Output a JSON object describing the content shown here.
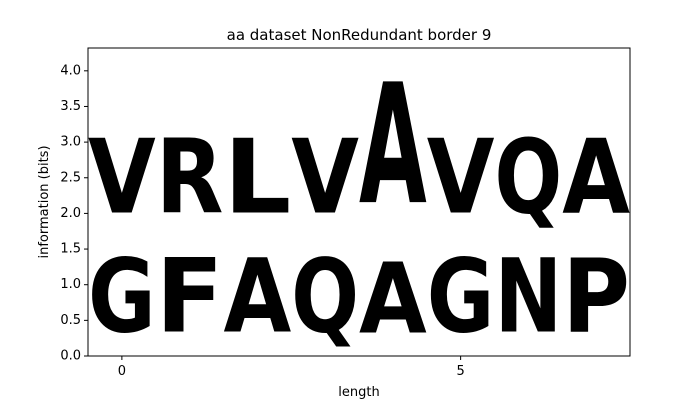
{
  "chart_data": {
    "type": "sequence-logo",
    "title": "aa dataset NonRedundant border 9",
    "xlabel": "length",
    "ylabel": "information (bits)",
    "xlim": [
      -0.5,
      7.5
    ],
    "ylim": [
      0,
      4.32
    ],
    "xticks": [
      0,
      5
    ],
    "xtick_labels": [
      "0",
      "5"
    ],
    "yticks": [
      0.0,
      0.5,
      1.0,
      1.5,
      2.0,
      2.5,
      3.0,
      3.5,
      4.0
    ],
    "ytick_labels": [
      "0.0",
      "0.5",
      "1.0",
      "1.5",
      "2.0",
      "2.5",
      "3.0",
      "3.5",
      "4.0"
    ],
    "colors": {
      "green": "#22dd2b",
      "blue": "#0a1ec8",
      "magenta": "#d71ec8",
      "black": "#000000"
    },
    "positions": [
      {
        "x": 0,
        "letters": [
          {
            "char": "G",
            "bottom": 0.0,
            "top": 1.67,
            "color": "green"
          },
          {
            "char": "V",
            "bottom": 1.67,
            "top": 3.35,
            "color": "black"
          }
        ]
      },
      {
        "x": 1,
        "letters": [
          {
            "char": "F",
            "bottom": 0.0,
            "top": 1.67,
            "color": "black"
          },
          {
            "char": "R",
            "bottom": 1.67,
            "top": 3.35,
            "color": "blue"
          }
        ]
      },
      {
        "x": 2,
        "letters": [
          {
            "char": "A",
            "bottom": 0.0,
            "top": 1.67,
            "color": "black"
          },
          {
            "char": "L",
            "bottom": 1.67,
            "top": 3.35,
            "color": "black"
          }
        ]
      },
      {
        "x": 3,
        "letters": [
          {
            "char": "Q",
            "bottom": 0.0,
            "top": 1.67,
            "color": "magenta"
          },
          {
            "char": "V",
            "bottom": 1.67,
            "top": 3.35,
            "color": "black"
          }
        ]
      },
      {
        "x": 4,
        "letters": [
          {
            "char": "A",
            "bottom": 0.0,
            "top": 1.6,
            "color": "black"
          },
          {
            "char": "A",
            "bottom": 1.6,
            "top": 4.32,
            "color": "black"
          }
        ]
      },
      {
        "x": 5,
        "letters": [
          {
            "char": "G",
            "bottom": 0.0,
            "top": 1.67,
            "color": "green"
          },
          {
            "char": "V",
            "bottom": 1.67,
            "top": 3.35,
            "color": "black"
          }
        ]
      },
      {
        "x": 6,
        "letters": [
          {
            "char": "N",
            "bottom": 0.0,
            "top": 1.67,
            "color": "magenta"
          },
          {
            "char": "Q",
            "bottom": 1.67,
            "top": 3.35,
            "color": "magenta"
          }
        ]
      },
      {
        "x": 7,
        "letters": [
          {
            "char": "P",
            "bottom": 0.0,
            "top": 1.67,
            "color": "black"
          },
          {
            "char": "A",
            "bottom": 1.67,
            "top": 3.35,
            "color": "black"
          }
        ]
      }
    ]
  }
}
